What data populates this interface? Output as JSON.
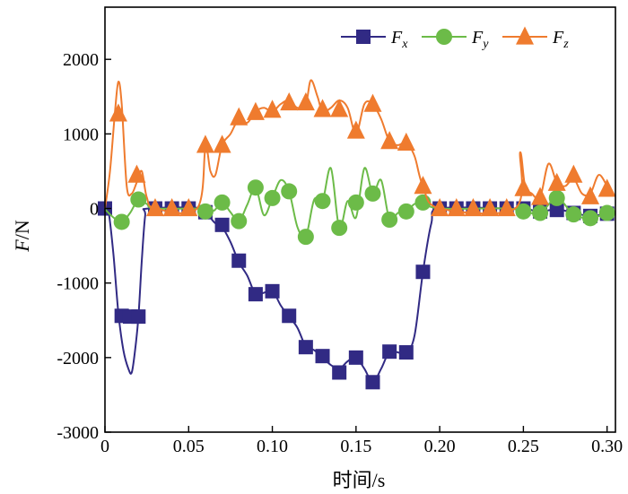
{
  "chart_data": {
    "type": "line",
    "xlabel": "时间/s",
    "ylabel": "F/N",
    "xlim": [
      0,
      0.305
    ],
    "ylim": [
      -3000,
      2700
    ],
    "x_ticks": [
      "0",
      "0.05",
      "0.10",
      "0.15",
      "0.20",
      "0.25",
      "0.30"
    ],
    "y_ticks": [
      "-3000",
      "-2000",
      "-1000",
      "0",
      "1000",
      "2000"
    ],
    "grid": false,
    "legend_position": "top-right",
    "series": [
      {
        "name": "Fx",
        "name_main": "F",
        "name_sub": "x",
        "color": "#312a84",
        "marker": "square",
        "curve": [
          [
            0,
            0
          ],
          [
            0.002,
            -20
          ],
          [
            0.005,
            -600
          ],
          [
            0.008,
            -1400
          ],
          [
            0.011,
            -1900
          ],
          [
            0.014,
            -2150
          ],
          [
            0.016,
            -2200
          ],
          [
            0.018,
            -1900
          ],
          [
            0.02,
            -1450
          ],
          [
            0.022,
            -700
          ],
          [
            0.024,
            -100
          ],
          [
            0.026,
            0
          ],
          [
            0.06,
            0
          ],
          [
            0.063,
            -120
          ],
          [
            0.066,
            -200
          ],
          [
            0.07,
            -250
          ],
          [
            0.075,
            -450
          ],
          [
            0.08,
            -720
          ],
          [
            0.085,
            -900
          ],
          [
            0.09,
            -1150
          ],
          [
            0.095,
            -1130
          ],
          [
            0.1,
            -1100
          ],
          [
            0.105,
            -1300
          ],
          [
            0.11,
            -1450
          ],
          [
            0.115,
            -1600
          ],
          [
            0.12,
            -1850
          ],
          [
            0.125,
            -1900
          ],
          [
            0.13,
            -2000
          ],
          [
            0.135,
            -2100
          ],
          [
            0.14,
            -2150
          ],
          [
            0.145,
            -2050
          ],
          [
            0.15,
            -2000
          ],
          [
            0.155,
            -2150
          ],
          [
            0.16,
            -2330
          ],
          [
            0.165,
            -2150
          ],
          [
            0.17,
            -1920
          ],
          [
            0.175,
            -1930
          ],
          [
            0.18,
            -1950
          ],
          [
            0.185,
            -1700
          ],
          [
            0.19,
            -850
          ],
          [
            0.195,
            -200
          ],
          [
            0.2,
            0
          ],
          [
            0.24,
            0
          ],
          [
            0.25,
            0
          ],
          [
            0.26,
            -40
          ],
          [
            0.27,
            -10
          ],
          [
            0.28,
            -60
          ],
          [
            0.29,
            -100
          ],
          [
            0.3,
            -70
          ]
        ],
        "markers": [
          [
            0,
            0
          ],
          [
            0.01,
            -1440
          ],
          [
            0.015,
            -1450
          ],
          [
            0.02,
            -1450
          ],
          [
            0.03,
            0
          ],
          [
            0.04,
            0
          ],
          [
            0.05,
            0
          ],
          [
            0.06,
            -50
          ],
          [
            0.07,
            -220
          ],
          [
            0.08,
            -700
          ],
          [
            0.09,
            -1150
          ],
          [
            0.1,
            -1110
          ],
          [
            0.11,
            -1440
          ],
          [
            0.12,
            -1860
          ],
          [
            0.13,
            -1980
          ],
          [
            0.14,
            -2200
          ],
          [
            0.15,
            -2000
          ],
          [
            0.16,
            -2330
          ],
          [
            0.17,
            -1920
          ],
          [
            0.18,
            -1930
          ],
          [
            0.19,
            -850
          ],
          [
            0.2,
            0
          ],
          [
            0.21,
            0
          ],
          [
            0.22,
            0
          ],
          [
            0.23,
            0
          ],
          [
            0.24,
            0
          ],
          [
            0.25,
            0
          ],
          [
            0.26,
            -40
          ],
          [
            0.27,
            -20
          ],
          [
            0.28,
            -60
          ],
          [
            0.29,
            -100
          ],
          [
            0.3,
            -70
          ]
        ]
      },
      {
        "name": "Fy",
        "name_main": "F",
        "name_sub": "y",
        "color": "#6cbb48",
        "marker": "circle",
        "curve": [
          [
            0,
            -10
          ],
          [
            0.005,
            -120
          ],
          [
            0.01,
            -180
          ],
          [
            0.015,
            -60
          ],
          [
            0.02,
            120
          ],
          [
            0.025,
            60
          ],
          [
            0.03,
            0
          ],
          [
            0.06,
            0
          ],
          [
            0.065,
            -30
          ],
          [
            0.07,
            80
          ],
          [
            0.075,
            -50
          ],
          [
            0.08,
            -170
          ],
          [
            0.085,
            50
          ],
          [
            0.09,
            280
          ],
          [
            0.095,
            -90
          ],
          [
            0.1,
            140
          ],
          [
            0.105,
            380
          ],
          [
            0.11,
            230
          ],
          [
            0.115,
            -250
          ],
          [
            0.12,
            -380
          ],
          [
            0.125,
            120
          ],
          [
            0.13,
            100
          ],
          [
            0.135,
            540
          ],
          [
            0.14,
            -260
          ],
          [
            0.145,
            100
          ],
          [
            0.15,
            -120
          ],
          [
            0.155,
            540
          ],
          [
            0.16,
            200
          ],
          [
            0.165,
            380
          ],
          [
            0.17,
            -150
          ],
          [
            0.175,
            -60
          ],
          [
            0.18,
            -40
          ],
          [
            0.185,
            60
          ],
          [
            0.19,
            80
          ],
          [
            0.2,
            0
          ],
          [
            0.24,
            0
          ],
          [
            0.25,
            -40
          ],
          [
            0.26,
            -60
          ],
          [
            0.27,
            140
          ],
          [
            0.28,
            -80
          ],
          [
            0.29,
            -130
          ],
          [
            0.3,
            -60
          ]
        ],
        "markers": [
          [
            0.01,
            -180
          ],
          [
            0.02,
            120
          ],
          [
            0.06,
            -40
          ],
          [
            0.07,
            80
          ],
          [
            0.08,
            -170
          ],
          [
            0.09,
            280
          ],
          [
            0.1,
            140
          ],
          [
            0.11,
            230
          ],
          [
            0.12,
            -380
          ],
          [
            0.13,
            100
          ],
          [
            0.14,
            -260
          ],
          [
            0.15,
            80
          ],
          [
            0.16,
            200
          ],
          [
            0.17,
            -150
          ],
          [
            0.18,
            -40
          ],
          [
            0.19,
            80
          ],
          [
            0.25,
            -40
          ],
          [
            0.26,
            -60
          ],
          [
            0.27,
            140
          ],
          [
            0.28,
            -80
          ],
          [
            0.29,
            -130
          ],
          [
            0.3,
            -60
          ]
        ]
      },
      {
        "name": "Fz",
        "name_main": "F",
        "name_sub": "z",
        "color": "#ef7b2e",
        "marker": "triangle",
        "curve": [
          [
            0,
            0
          ],
          [
            0.003,
            500
          ],
          [
            0.006,
            1300
          ],
          [
            0.008,
            1700
          ],
          [
            0.01,
            1400
          ],
          [
            0.013,
            300
          ],
          [
            0.016,
            200
          ],
          [
            0.019,
            350
          ],
          [
            0.022,
            500
          ],
          [
            0.025,
            150
          ],
          [
            0.03,
            0
          ],
          [
            0.055,
            0
          ],
          [
            0.06,
            800
          ],
          [
            0.063,
            500
          ],
          [
            0.066,
            450
          ],
          [
            0.07,
            850
          ],
          [
            0.075,
            1000
          ],
          [
            0.08,
            1200
          ],
          [
            0.085,
            1150
          ],
          [
            0.09,
            1300
          ],
          [
            0.095,
            1350
          ],
          [
            0.1,
            1300
          ],
          [
            0.105,
            1400
          ],
          [
            0.11,
            1450
          ],
          [
            0.115,
            1350
          ],
          [
            0.12,
            1400
          ],
          [
            0.123,
            1720
          ],
          [
            0.127,
            1500
          ],
          [
            0.13,
            1300
          ],
          [
            0.135,
            1350
          ],
          [
            0.14,
            1450
          ],
          [
            0.145,
            1350
          ],
          [
            0.15,
            1000
          ],
          [
            0.155,
            1400
          ],
          [
            0.16,
            1400
          ],
          [
            0.165,
            1200
          ],
          [
            0.17,
            900
          ],
          [
            0.175,
            850
          ],
          [
            0.18,
            880
          ],
          [
            0.185,
            700
          ],
          [
            0.19,
            300
          ],
          [
            0.2,
            0
          ],
          [
            0.245,
            0
          ],
          [
            0.248,
            750
          ],
          [
            0.251,
            300
          ],
          [
            0.255,
            200
          ],
          [
            0.26,
            150
          ],
          [
            0.265,
            600
          ],
          [
            0.27,
            350
          ],
          [
            0.275,
            300
          ],
          [
            0.28,
            400
          ],
          [
            0.285,
            200
          ],
          [
            0.29,
            200
          ],
          [
            0.295,
            450
          ],
          [
            0.3,
            300
          ]
        ],
        "markers": [
          [
            0.008,
            1270
          ],
          [
            0.019,
            450
          ],
          [
            0.03,
            0
          ],
          [
            0.04,
            0
          ],
          [
            0.05,
            0
          ],
          [
            0.06,
            850
          ],
          [
            0.07,
            850
          ],
          [
            0.08,
            1220
          ],
          [
            0.09,
            1290
          ],
          [
            0.1,
            1320
          ],
          [
            0.11,
            1420
          ],
          [
            0.12,
            1420
          ],
          [
            0.13,
            1330
          ],
          [
            0.14,
            1330
          ],
          [
            0.15,
            1040
          ],
          [
            0.16,
            1400
          ],
          [
            0.17,
            900
          ],
          [
            0.18,
            880
          ],
          [
            0.19,
            300
          ],
          [
            0.2,
            0
          ],
          [
            0.21,
            0
          ],
          [
            0.22,
            0
          ],
          [
            0.23,
            0
          ],
          [
            0.24,
            0
          ],
          [
            0.25,
            270
          ],
          [
            0.26,
            150
          ],
          [
            0.27,
            340
          ],
          [
            0.28,
            450
          ],
          [
            0.29,
            160
          ],
          [
            0.3,
            260
          ]
        ]
      }
    ]
  }
}
